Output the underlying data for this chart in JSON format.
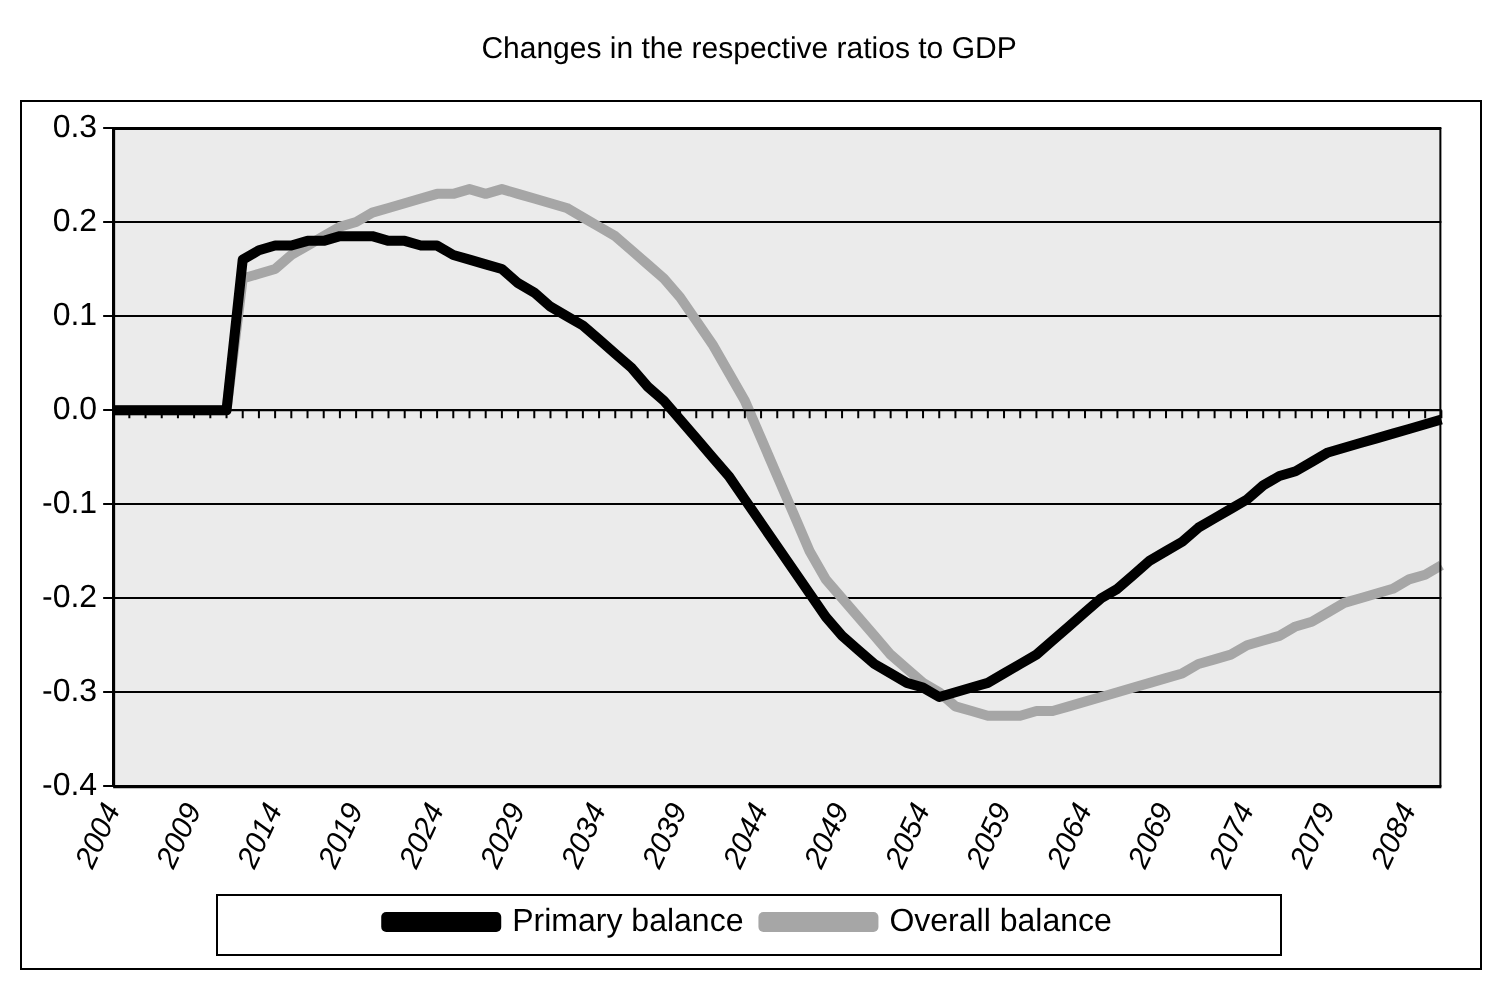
{
  "chart_data": {
    "type": "line",
    "title": "Changes in the respective ratios to GDP",
    "categories": [
      "2004",
      null,
      null,
      null,
      null,
      "2009",
      null,
      null,
      null,
      null,
      "2014",
      null,
      null,
      null,
      null,
      "2019",
      null,
      null,
      null,
      null,
      "2024",
      null,
      null,
      null,
      null,
      "2029",
      null,
      null,
      null,
      null,
      "2034",
      null,
      null,
      null,
      null,
      "2039",
      null,
      null,
      null,
      null,
      "2044",
      null,
      null,
      null,
      null,
      "2049",
      null,
      null,
      null,
      null,
      "2054",
      null,
      null,
      null,
      null,
      "2059",
      null,
      null,
      null,
      null,
      "2064",
      null,
      null,
      null,
      null,
      "2069",
      null,
      null,
      null,
      null,
      "2074",
      null,
      null,
      null,
      null,
      "2079",
      null,
      null,
      null,
      null,
      "2084",
      null,
      null
    ],
    "series": [
      {
        "name": "Primary balance",
        "color": "#000000",
        "values": [
          0,
          0,
          0,
          0,
          0,
          0,
          0,
          0,
          0.16,
          0.17,
          0.175,
          0.175,
          0.18,
          0.18,
          0.185,
          0.185,
          0.185,
          0.18,
          0.18,
          0.175,
          0.175,
          0.165,
          0.16,
          0.155,
          0.15,
          0.135,
          0.125,
          0.11,
          0.1,
          0.09,
          0.075,
          0.06,
          0.045,
          0.025,
          0.01,
          -0.01,
          -0.03,
          -0.05,
          -0.07,
          -0.095,
          -0.12,
          -0.145,
          -0.17,
          -0.195,
          -0.22,
          -0.24,
          -0.255,
          -0.27,
          -0.28,
          -0.29,
          -0.295,
          -0.305,
          -0.3,
          -0.295,
          -0.29,
          -0.28,
          -0.27,
          -0.26,
          -0.245,
          -0.23,
          -0.215,
          -0.2,
          -0.19,
          -0.175,
          -0.16,
          -0.15,
          -0.14,
          -0.125,
          -0.115,
          -0.105,
          -0.095,
          -0.08,
          -0.07,
          -0.065,
          -0.055,
          -0.045,
          -0.04,
          -0.035,
          -0.03,
          -0.025,
          -0.02,
          -0.015,
          -0.01
        ]
      },
      {
        "name": "Overall balance",
        "color": "#a6a6a6",
        "values": [
          0,
          0,
          0,
          0,
          0,
          0,
          0,
          0,
          0.14,
          0.145,
          0.15,
          0.165,
          0.175,
          0.185,
          0.195,
          0.2,
          0.21,
          0.215,
          0.22,
          0.225,
          0.23,
          0.23,
          0.235,
          0.23,
          0.235,
          0.23,
          0.225,
          0.22,
          0.215,
          0.205,
          0.195,
          0.185,
          0.17,
          0.155,
          0.14,
          0.12,
          0.095,
          0.07,
          0.04,
          0.01,
          -0.03,
          -0.07,
          -0.11,
          -0.15,
          -0.18,
          -0.2,
          -0.22,
          -0.24,
          -0.26,
          -0.275,
          -0.29,
          -0.3,
          -0.315,
          -0.32,
          -0.325,
          -0.325,
          -0.325,
          -0.32,
          -0.32,
          -0.315,
          -0.31,
          -0.305,
          -0.3,
          -0.295,
          -0.29,
          -0.285,
          -0.28,
          -0.27,
          -0.265,
          -0.26,
          -0.25,
          -0.245,
          -0.24,
          -0.23,
          -0.225,
          -0.215,
          -0.205,
          -0.2,
          -0.195,
          -0.19,
          -0.18,
          -0.175,
          -0.165
        ]
      }
    ],
    "ylim": [
      -0.4,
      0.3
    ],
    "yticks": [
      {
        "value": -0.4,
        "label": "-0.4"
      },
      {
        "value": -0.3,
        "label": "-0.3"
      },
      {
        "value": -0.2,
        "label": "-0.2"
      },
      {
        "value": -0.1,
        "label": "-0.1"
      },
      {
        "value": 0,
        "label": "0.0"
      },
      {
        "value": 0.1,
        "label": "0.1"
      },
      {
        "value": 0.2,
        "label": "0.2"
      },
      {
        "value": 0.3,
        "label": "0.3"
      }
    ],
    "grid": "y",
    "legend": "bottom",
    "marker": "none"
  }
}
